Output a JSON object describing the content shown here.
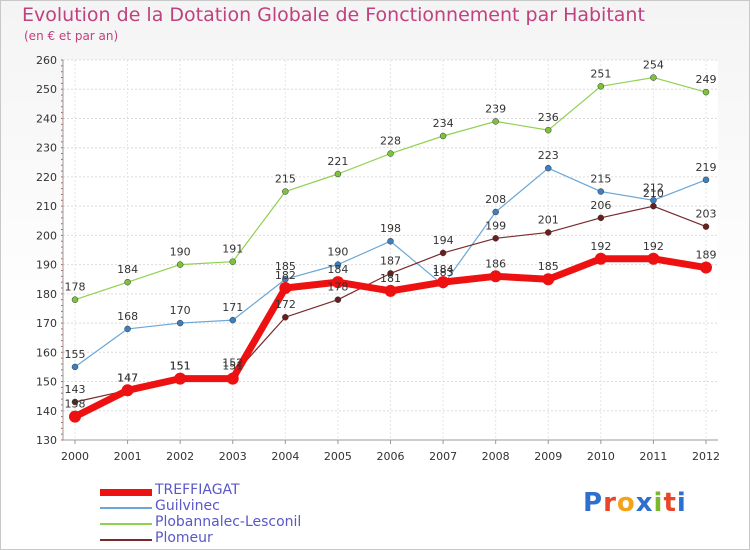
{
  "title": "Evolution de la Dotation Globale de Fonctionnement par Habitant",
  "subtitle": "(en € et par an)",
  "logo": {
    "text": "Proxiti",
    "colors": [
      "#2f6fd0",
      "#e8462a",
      "#f4a21a",
      "#2f6fd0",
      "#7ab92e",
      "#e8462a",
      "#2f6fd0"
    ]
  },
  "chart_data": {
    "type": "line",
    "x": [
      "2000",
      "2001",
      "2002",
      "2003",
      "2004",
      "2005",
      "2006",
      "2007",
      "2008",
      "2009",
      "2010",
      "2011",
      "2012"
    ],
    "ylim": [
      130,
      260
    ],
    "yticks": [
      130,
      140,
      150,
      160,
      170,
      180,
      190,
      200,
      210,
      220,
      230,
      240,
      250,
      260
    ],
    "grid": true,
    "legend_position": "bottom-left",
    "series": [
      {
        "name": "Plobannalec-Lesconil",
        "color": "#8fd14f",
        "marker": "#7cc23a",
        "width": 1.2,
        "values": [
          178,
          184,
          190,
          191,
          215,
          221,
          228,
          234,
          239,
          236,
          251,
          254,
          249
        ]
      },
      {
        "name": "Guilvinec",
        "color": "#6aa6d6",
        "marker": "#3e7fc0",
        "width": 1.2,
        "values": [
          155,
          168,
          170,
          171,
          185,
          190,
          198,
          183,
          208,
          223,
          215,
          212,
          219
        ]
      },
      {
        "name": "Plomeur",
        "color": "#7a2a2a",
        "marker": "#6a1e1e",
        "width": 1.2,
        "values": [
          143,
          147,
          151,
          152,
          172,
          178,
          187,
          194,
          199,
          201,
          206,
          210,
          203
        ]
      },
      {
        "name": "TREFFIAGAT",
        "color": "#ee1111",
        "marker": "#ee1111",
        "width": 7,
        "values": [
          138,
          147,
          151,
          151,
          182,
          184,
          181,
          184,
          186,
          185,
          192,
          192,
          189
        ]
      }
    ],
    "legend_order": [
      "TREFFIAGAT",
      "Guilvinec",
      "Plobannalec-Lesconil",
      "Plomeur"
    ]
  }
}
